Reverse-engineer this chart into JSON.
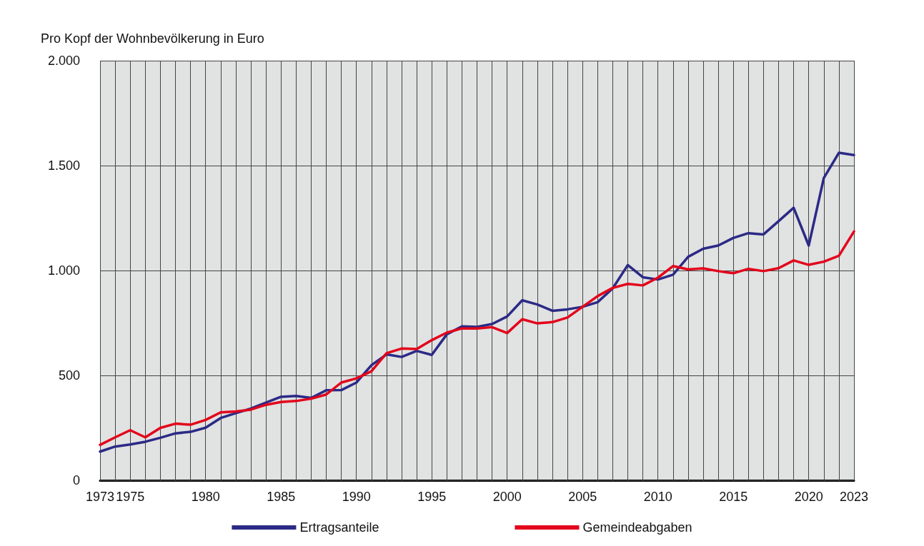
{
  "chart_data": {
    "type": "line",
    "ylabel": "Pro Kopf der Wohnbevölkerung in Euro",
    "x": [
      1973,
      1974,
      1975,
      1976,
      1977,
      1978,
      1979,
      1980,
      1981,
      1982,
      1983,
      1984,
      1985,
      1986,
      1987,
      1988,
      1989,
      1990,
      1991,
      1992,
      1993,
      1994,
      1995,
      1996,
      1997,
      1998,
      1999,
      2000,
      2001,
      2002,
      2003,
      2004,
      2005,
      2006,
      2007,
      2008,
      2009,
      2010,
      2011,
      2012,
      2013,
      2014,
      2015,
      2016,
      2017,
      2018,
      2019,
      2020,
      2021,
      2022,
      2023
    ],
    "series": [
      {
        "name": "Ertragsanteile",
        "color": "#2b2a86",
        "values": [
          137,
          161,
          171,
          184,
          203,
          224,
          231,
          251,
          297,
          320,
          342,
          370,
          398,
          402,
          393,
          429,
          430,
          466,
          549,
          600,
          588,
          617,
          598,
          696,
          734,
          731,
          745,
          781,
          858,
          838,
          808,
          815,
          827,
          849,
          915,
          1026,
          968,
          957,
          980,
          1065,
          1104,
          1119,
          1155,
          1178,
          1172,
          1235,
          1299,
          1119,
          1441,
          1561,
          1550
        ]
      },
      {
        "name": "Gemeindeabgaben",
        "color": "#e3051b",
        "values": [
          169,
          205,
          239,
          205,
          250,
          270,
          265,
          288,
          324,
          328,
          337,
          360,
          373,
          378,
          389,
          409,
          466,
          486,
          520,
          606,
          628,
          626,
          668,
          704,
          724,
          724,
          730,
          702,
          768,
          748,
          754,
          776,
          827,
          878,
          917,
          936,
          929,
          966,
          1021,
          1005,
          1010,
          997,
          987,
          1008,
          997,
          1011,
          1048,
          1027,
          1042,
          1070,
          1186
        ]
      }
    ],
    "xlim": [
      1973,
      2023
    ],
    "xticks": [
      1973,
      {
        "value": 1974,
        "label": null
      },
      1975,
      {
        "value": 1976,
        "label": null
      },
      {
        "value": 1977,
        "label": null
      },
      {
        "value": 1978,
        "label": null
      },
      {
        "value": 1979,
        "label": null
      },
      1980,
      {
        "value": 1981,
        "label": null
      },
      {
        "value": 1982,
        "label": null
      },
      {
        "value": 1983,
        "label": null
      },
      {
        "value": 1984,
        "label": null
      },
      1985,
      {
        "value": 1986,
        "label": null
      },
      {
        "value": 1987,
        "label": null
      },
      {
        "value": 1988,
        "label": null
      },
      {
        "value": 1989,
        "label": null
      },
      1990,
      {
        "value": 1991,
        "label": null
      },
      {
        "value": 1992,
        "label": null
      },
      {
        "value": 1993,
        "label": null
      },
      {
        "value": 1994,
        "label": null
      },
      1995,
      {
        "value": 1996,
        "label": null
      },
      {
        "value": 1997,
        "label": null
      },
      {
        "value": 1998,
        "label": null
      },
      {
        "value": 1999,
        "label": null
      },
      2000,
      {
        "value": 2001,
        "label": null
      },
      {
        "value": 2002,
        "label": null
      },
      {
        "value": 2003,
        "label": null
      },
      {
        "value": 2004,
        "label": null
      },
      2005,
      {
        "value": 2006,
        "label": null
      },
      {
        "value": 2007,
        "label": null
      },
      {
        "value": 2008,
        "label": null
      },
      {
        "value": 2009,
        "label": null
      },
      2010,
      {
        "value": 2011,
        "label": null
      },
      {
        "value": 2012,
        "label": null
      },
      {
        "value": 2013,
        "label": null
      },
      {
        "value": 2014,
        "label": null
      },
      2015,
      {
        "value": 2016,
        "label": null
      },
      {
        "value": 2017,
        "label": null
      },
      {
        "value": 2018,
        "label": null
      },
      {
        "value": 2019,
        "label": null
      },
      2020,
      {
        "value": 2021,
        "label": null
      },
      {
        "value": 2022,
        "label": null
      },
      2023
    ],
    "ylim": [
      0,
      2000
    ],
    "yticks": [
      0,
      500,
      {
        "value": 1000,
        "label": "1.000"
      },
      {
        "value": 1500,
        "label": "1.500"
      },
      {
        "value": 2000,
        "label": "2.000"
      }
    ],
    "grid": true,
    "legend": "bottom",
    "marker": "none"
  }
}
